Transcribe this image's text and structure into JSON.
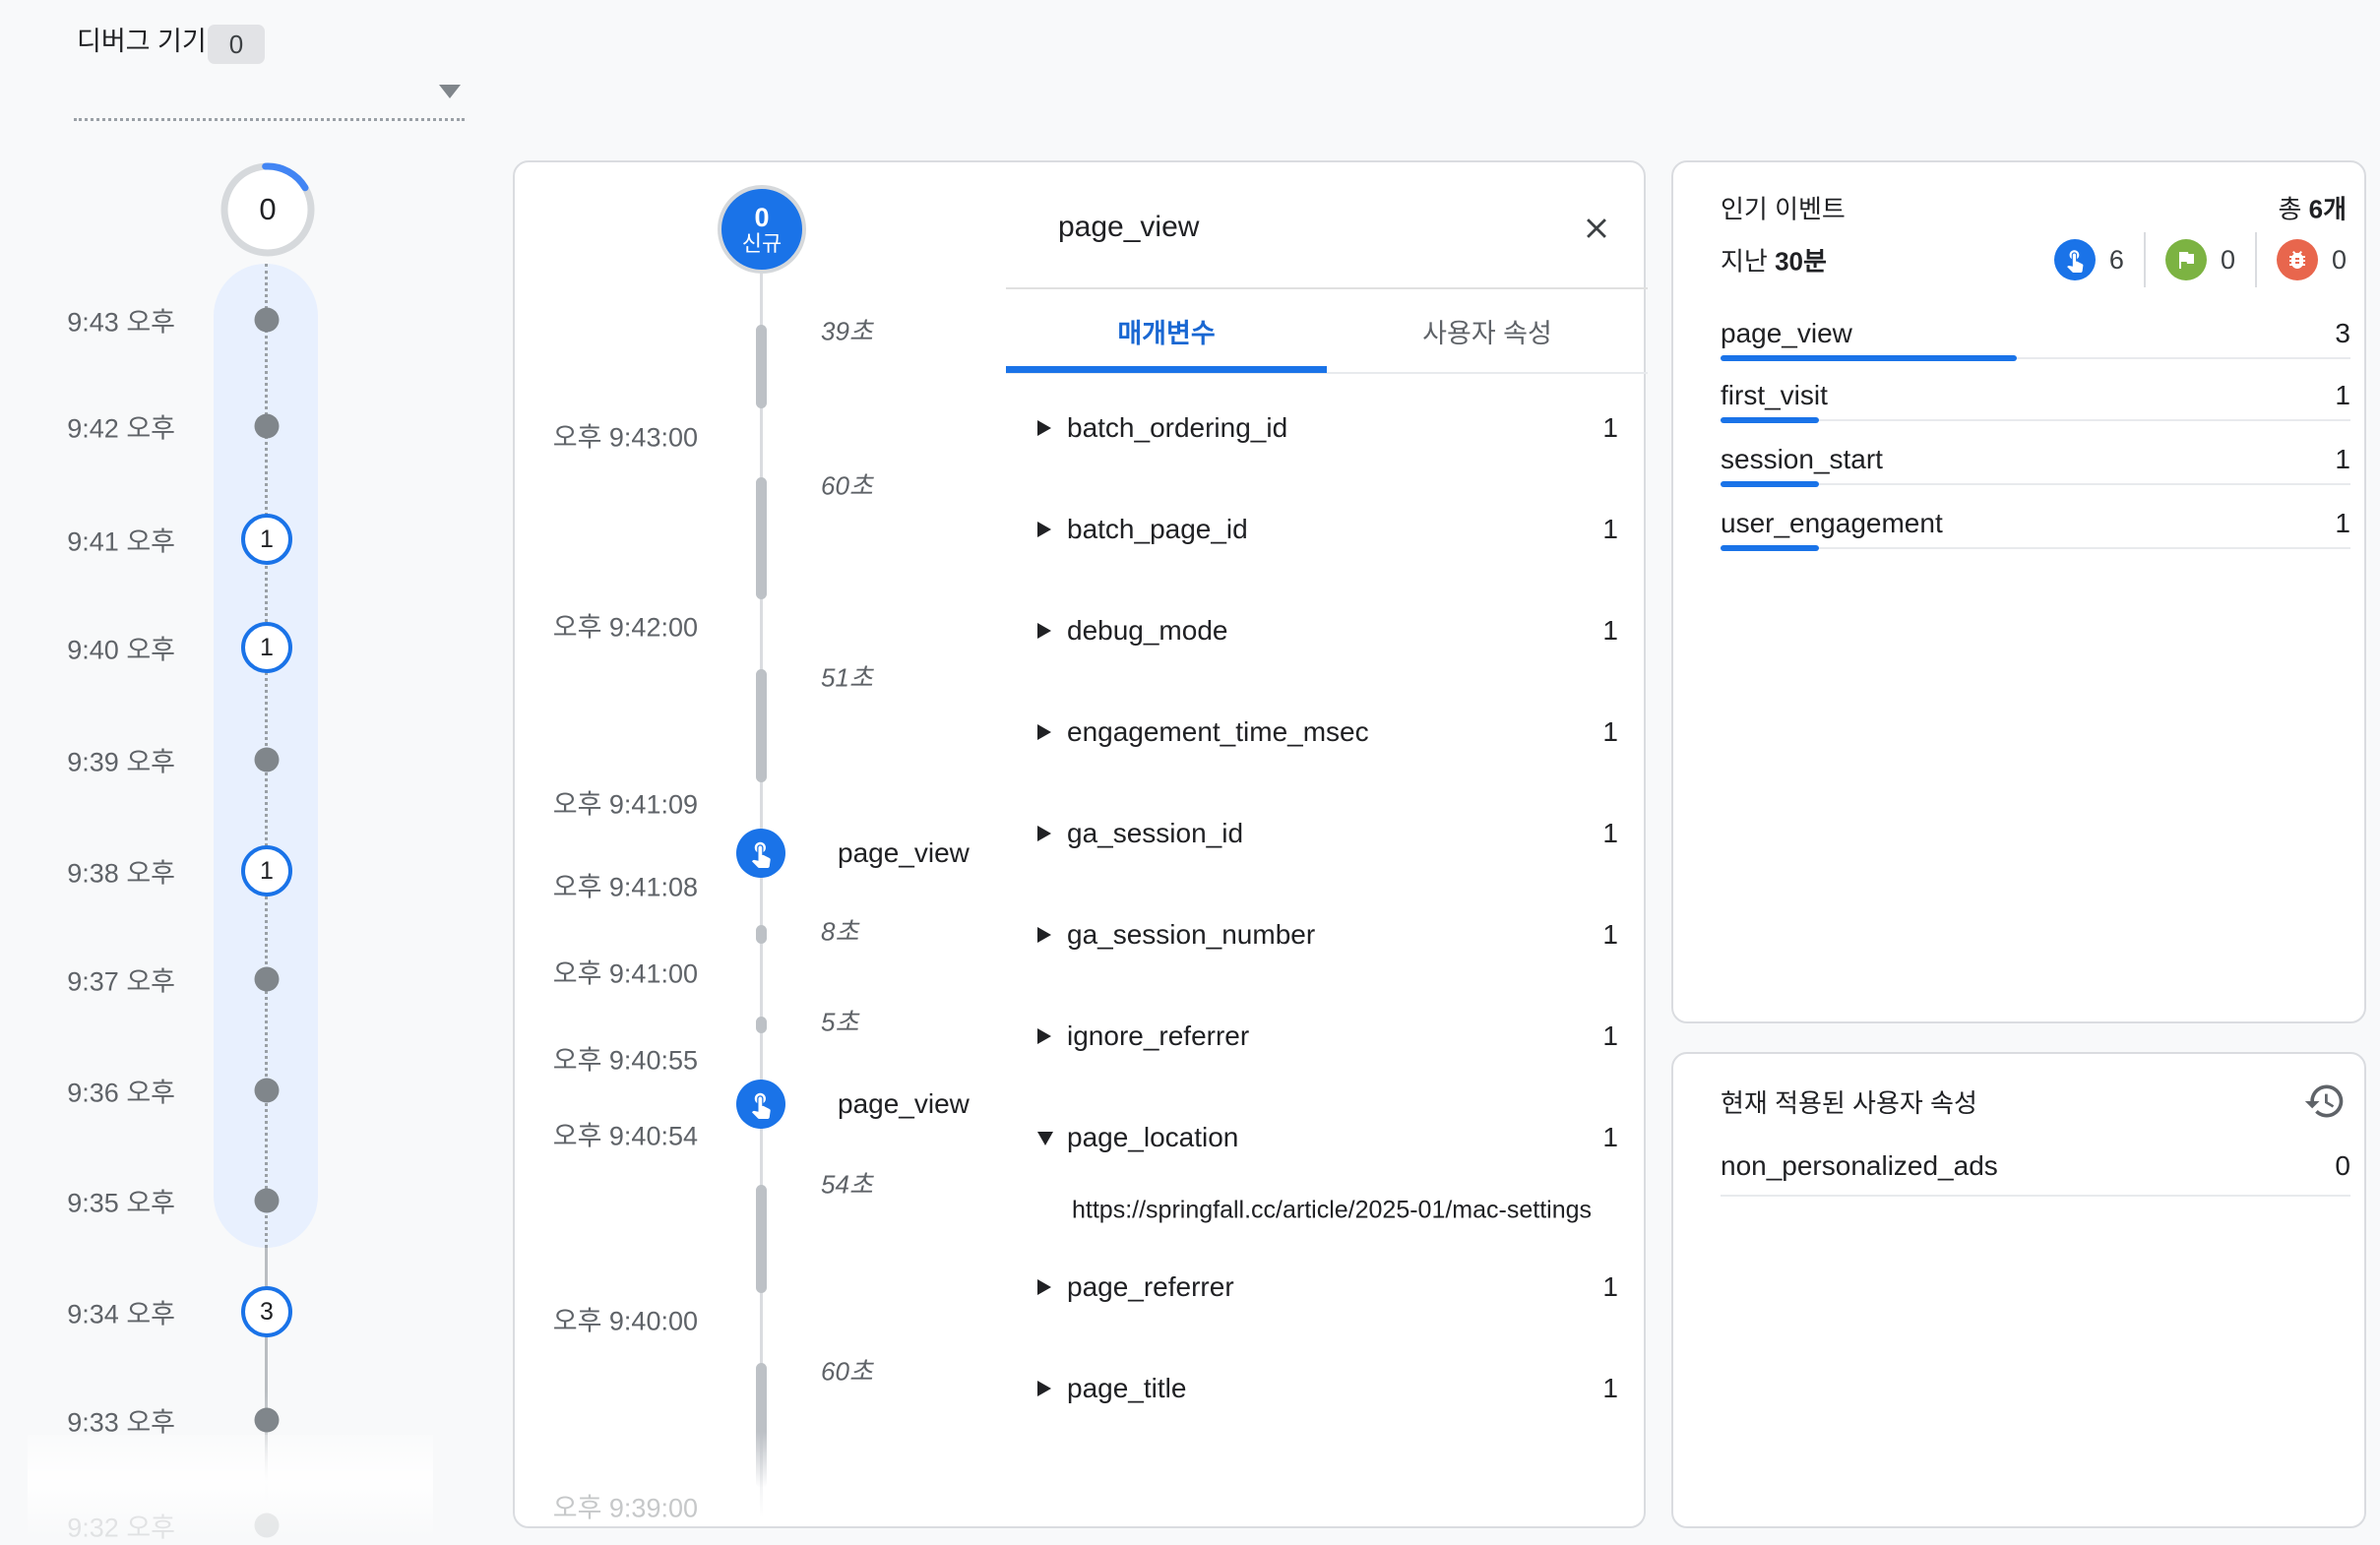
{
  "colors": {
    "accent": "#1a73e8",
    "band": "#e8f0fe",
    "flag_green": "#7cb342",
    "bug_red": "#e8664d",
    "tab_active": "#1967d2"
  },
  "debug_device": {
    "label": "디버그 기기",
    "badge": "0"
  },
  "minute_stream": {
    "summary_count": "0",
    "rows": [
      {
        "time": "9:43 오후",
        "count": null
      },
      {
        "time": "9:42 오후",
        "count": null
      },
      {
        "time": "9:41 오후",
        "count": "1"
      },
      {
        "time": "9:40 오후",
        "count": "1"
      },
      {
        "time": "9:39 오후",
        "count": null
      },
      {
        "time": "9:38 오후",
        "count": "1"
      },
      {
        "time": "9:37 오후",
        "count": null
      },
      {
        "time": "9:36 오후",
        "count": null
      },
      {
        "time": "9:35 오후",
        "count": null
      },
      {
        "time": "9:34 오후",
        "count": "3"
      },
      {
        "time": "9:33 오후",
        "count": null
      },
      {
        "time": "9:32 오후",
        "count": null
      }
    ]
  },
  "second_stream": {
    "badge_count": "0",
    "badge_label": "신규",
    "timestamps": [
      "오후 9:43:00",
      "오후 9:42:00",
      "오후 9:41:09",
      "오후 9:41:08",
      "오후 9:41:00",
      "오후 9:40:55",
      "오후 9:40:54",
      "오후 9:40:00",
      "오후 9:39:00"
    ],
    "durations": [
      "39초",
      "60초",
      "51초",
      "8초",
      "5초",
      "54초",
      "60초"
    ],
    "events": [
      {
        "name": "page_view"
      },
      {
        "name": "page_view"
      }
    ]
  },
  "event_detail": {
    "title": "page_view",
    "tabs": [
      {
        "label": "매개변수"
      },
      {
        "label": "사용자 속성"
      }
    ],
    "params": [
      {
        "name": "batch_ordering_id",
        "value": "1"
      },
      {
        "name": "batch_page_id",
        "value": "1"
      },
      {
        "name": "debug_mode",
        "value": "1"
      },
      {
        "name": "engagement_time_msec",
        "value": "1"
      },
      {
        "name": "ga_session_id",
        "value": "1"
      },
      {
        "name": "ga_session_number",
        "value": "1"
      },
      {
        "name": "ignore_referrer",
        "value": "1"
      },
      {
        "name": "page_location",
        "value": "1",
        "expanded_value": "https://springfall.cc/article/2025-01/mac-settings"
      },
      {
        "name": "page_referrer",
        "value": "1"
      },
      {
        "name": "page_title",
        "value": "1"
      }
    ]
  },
  "top_events": {
    "title": "인기 이벤트",
    "total_prefix": "총 ",
    "total_bold": "6개",
    "window_prefix": "지난 ",
    "window_bold": "30분",
    "counters": [
      {
        "icon": "touch-icon",
        "value": "6"
      },
      {
        "icon": "flag-icon",
        "value": "0"
      },
      {
        "icon": "bug-icon",
        "value": "0"
      }
    ],
    "rows": [
      {
        "name": "page_view",
        "value": "3",
        "bar_pct": 47
      },
      {
        "name": "first_visit",
        "value": "1",
        "bar_pct": 15.6
      },
      {
        "name": "session_start",
        "value": "1",
        "bar_pct": 15.6
      },
      {
        "name": "user_engagement",
        "value": "1",
        "bar_pct": 15.6
      }
    ]
  },
  "user_properties": {
    "title": "현재 적용된 사용자 속성",
    "rows": [
      {
        "name": "non_personalized_ads",
        "value": "0"
      }
    ]
  }
}
